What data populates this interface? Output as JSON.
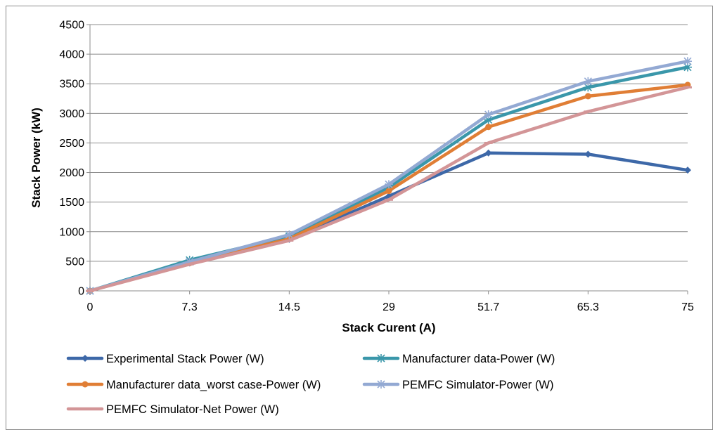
{
  "chart_data": {
    "type": "line",
    "title": "",
    "xlabel": "Stack Curent (A)",
    "ylabel": "Stack Power (kW)",
    "categories": [
      "0",
      "7.3",
      "14.5",
      "29",
      "51.7",
      "65.3",
      "75"
    ],
    "ylim": [
      0,
      4500
    ],
    "yticks": [
      0,
      500,
      1000,
      1500,
      2000,
      2500,
      3000,
      3500,
      4000,
      4500
    ],
    "grid": true,
    "legend_position": "bottom",
    "series": [
      {
        "name": "Experimental Stack Power (W)",
        "color": "#3d68a8",
        "marker": "diamond",
        "values": [
          0,
          470,
          870,
          1600,
          2330,
          2310,
          2040
        ]
      },
      {
        "name": "Manufacturer data-Power (W)",
        "color": "#3a97aa",
        "marker": "star",
        "values": [
          0,
          520,
          920,
          1750,
          2890,
          3440,
          3780
        ]
      },
      {
        "name": "Manufacturer data_worst case-Power (W)",
        "color": "#e07e35",
        "marker": "circle",
        "values": [
          0,
          470,
          880,
          1690,
          2770,
          3290,
          3480
        ]
      },
      {
        "name": "PEMFC Simulator-Power (W)",
        "color": "#93a9d3",
        "marker": "star",
        "values": [
          0,
          490,
          950,
          1800,
          2980,
          3540,
          3880
        ]
      },
      {
        "name": "PEMFC Simulator-Net Power (W)",
        "color": "#d39597",
        "marker": "dash",
        "values": [
          0,
          450,
          850,
          1540,
          2500,
          3030,
          3440
        ]
      }
    ]
  }
}
